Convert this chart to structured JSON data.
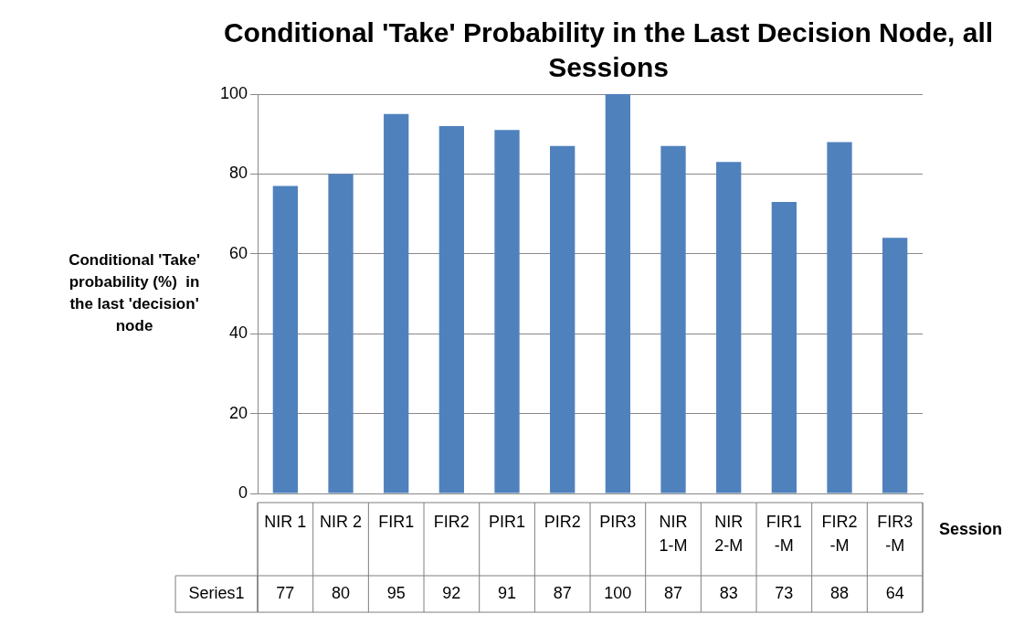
{
  "chart_data": {
    "type": "bar",
    "title": "Conditional 'Take' Probability in the Last Decision Node, all Sessions",
    "xlabel": "Session",
    "ylabel": "Conditional 'Take' probability (%)  in the last 'decision' node",
    "categories": [
      "NIR 1",
      "NIR 2",
      "FIR1",
      "FIR2",
      "PIR1",
      "PIR2",
      "PIR3",
      "NIR 1-M",
      "NIR 2-M",
      "FIR1 -M",
      "FIR2 -M",
      "FIR3 -M"
    ],
    "series": [
      {
        "name": "Series1",
        "color": "#4f81bd",
        "values": [
          77,
          80,
          95,
          92,
          91,
          87,
          100,
          87,
          83,
          73,
          88,
          64
        ]
      }
    ],
    "ylim": [
      0,
      100
    ],
    "yticks": [
      0,
      20,
      40,
      60,
      80,
      100
    ],
    "grid": "y",
    "legend": false,
    "data_labels": true
  }
}
